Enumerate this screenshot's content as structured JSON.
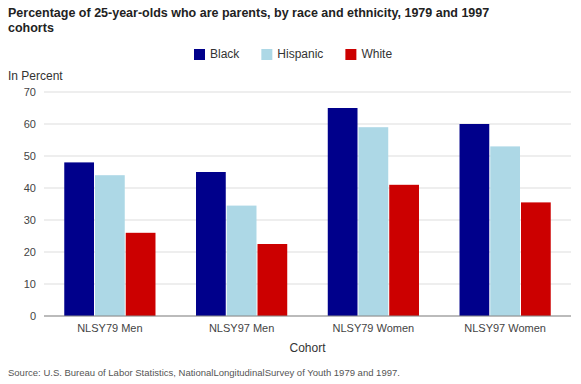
{
  "chart_data": {
    "type": "bar",
    "title": "Percentage of 25-year-olds who are parents, by race and ethnicity, 1979 and 1997\ncohorts",
    "y_label": "In Percent",
    "x_label": "Cohort",
    "annotations": [
      "Source: U.S. Bureau of Labor Statistics, NationalLongitudinalSurvey of Youth 1979 and 1997."
    ],
    "categories": [
      "NLSY79 Men",
      "NLSY97 Men",
      "NLSY79 Women",
      "NLSY97 Women"
    ],
    "series": [
      {
        "name": "Black",
        "color": "#00008B",
        "values": [
          48,
          45,
          65,
          60
        ]
      },
      {
        "name": "Hispanic",
        "color": "#ADD8E6",
        "values": [
          44,
          34.5,
          59,
          53
        ]
      },
      {
        "name": "White",
        "color": "#CC0000",
        "values": [
          26,
          22.5,
          41,
          35.5
        ]
      }
    ],
    "ylim": [
      0,
      70
    ],
    "yticks": [
      0,
      10,
      20,
      30,
      40,
      50,
      60,
      70
    ],
    "grid": true,
    "legend": "top"
  }
}
